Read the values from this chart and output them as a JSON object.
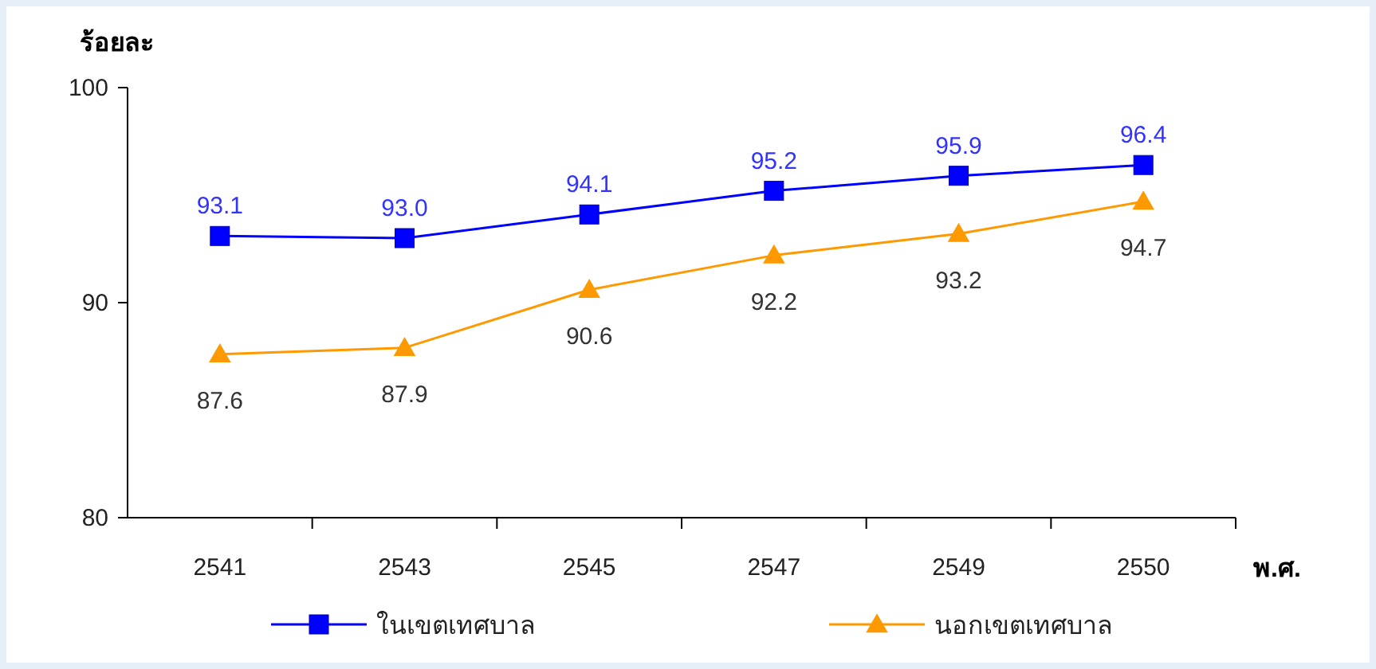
{
  "chart_data": {
    "type": "line",
    "ylabel": "ร้อยละ",
    "xlabel": "พ.ศ.",
    "categories": [
      "2541",
      "2543",
      "2545",
      "2547",
      "2549",
      "2550"
    ],
    "series": [
      {
        "name": "ในเขตเทศบาล",
        "color": "#0000ff",
        "marker": "square",
        "values": [
          93.1,
          93.0,
          94.1,
          95.2,
          95.9,
          96.4
        ],
        "value_labels": [
          "93.1",
          "93.0",
          "94.1",
          "95.2",
          "95.9",
          "96.4"
        ]
      },
      {
        "name": "นอกเขตเทศบาล",
        "color": "#ff9900",
        "marker": "triangle",
        "values": [
          87.6,
          87.9,
          90.6,
          92.2,
          93.2,
          94.7
        ],
        "value_labels": [
          "87.6",
          "87.9",
          "90.6",
          "92.2",
          "93.2",
          "94.7"
        ]
      }
    ],
    "ylim": [
      80,
      100
    ],
    "yticks": [
      80,
      90,
      100
    ],
    "grid": false,
    "legend": "bottom"
  }
}
